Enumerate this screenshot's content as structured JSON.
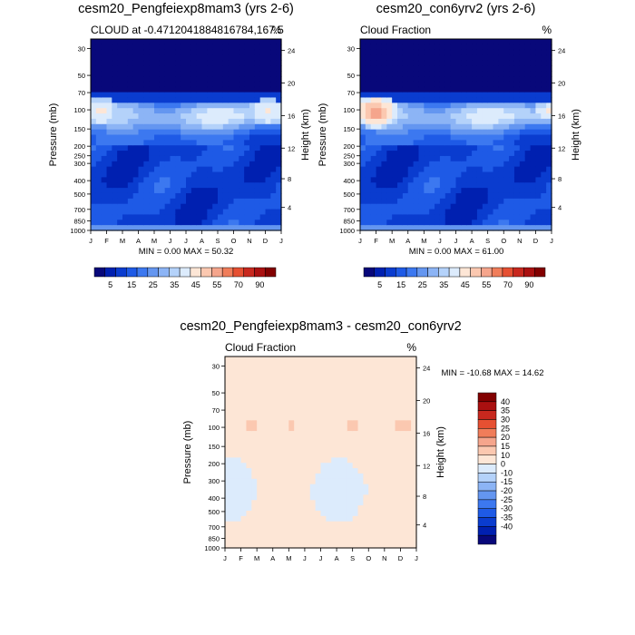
{
  "chart_data": [
    {
      "type": "heatmap",
      "title": "cesm20_Pengfeiexp8mam3 (yrs 2-6)",
      "subtitle_left": "CLOUD at -0.4712041884816784,167.5",
      "subtitle_right": "%",
      "ylabel": "Pressure (mb)",
      "ylabel_right": "Height (km)",
      "x_ticks": [
        "J",
        "F",
        "M",
        "A",
        "M",
        "J",
        "J",
        "A",
        "S",
        "O",
        "N",
        "D",
        "J"
      ],
      "y_ticks": [
        "30",
        "50",
        "70",
        "100",
        "150",
        "200",
        "250",
        "300",
        "400",
        "500",
        "700",
        "850",
        "1000"
      ],
      "y_ticks_right": [
        "24",
        "20",
        "16",
        "12",
        "8",
        "4"
      ],
      "stats": "MIN =   0.00 MAX =  50.32",
      "colorbar_labels": [
        "5",
        "15",
        "25",
        "35",
        "45",
        "55",
        "70",
        "90"
      ]
    },
    {
      "type": "heatmap",
      "title": "cesm20_con6yrv2 (yrs 2-6)",
      "subtitle_left": "Cloud Fraction",
      "subtitle_right": "%",
      "ylabel": "Pressure (mb)",
      "ylabel_right": "Height (km)",
      "x_ticks": [
        "J",
        "F",
        "M",
        "A",
        "M",
        "J",
        "J",
        "A",
        "S",
        "O",
        "N",
        "D",
        "J"
      ],
      "y_ticks": [
        "30",
        "50",
        "70",
        "100",
        "150",
        "200",
        "250",
        "300",
        "400",
        "500",
        "700",
        "850",
        "1000"
      ],
      "y_ticks_right": [
        "24",
        "20",
        "16",
        "12",
        "8",
        "4"
      ],
      "stats": "MIN =   0.00 MAX =  61.00",
      "colorbar_labels": [
        "5",
        "15",
        "25",
        "35",
        "45",
        "55",
        "70",
        "90"
      ]
    },
    {
      "type": "heatmap",
      "title": "cesm20_Pengfeiexp8mam3 - cesm20_con6yrv2",
      "subtitle_left": "Cloud Fraction",
      "subtitle_right": "%",
      "ylabel": "Pressure (mb)",
      "ylabel_right": "Height (km)",
      "x_ticks": [
        "J",
        "F",
        "M",
        "A",
        "M",
        "J",
        "J",
        "A",
        "S",
        "O",
        "N",
        "D",
        "J"
      ],
      "y_ticks": [
        "30",
        "50",
        "70",
        "100",
        "150",
        "200",
        "300",
        "400",
        "500",
        "700",
        "850",
        "1000"
      ],
      "y_ticks_right": [
        "24",
        "20",
        "16",
        "12",
        "8",
        "4"
      ],
      "stats": "MIN = -10.68 MAX =  14.62",
      "colorbar_labels": [
        "40",
        "35",
        "30",
        "25",
        "20",
        "15",
        "10",
        "0",
        "-10",
        "-15",
        "-20",
        "-25",
        "-30",
        "-35",
        "-40"
      ]
    }
  ],
  "colors": {
    "seq": [
      "#08087a",
      "#0020b0",
      "#0a3ccf",
      "#1e5ae6",
      "#3c78f0",
      "#6496f0",
      "#8cb4f5",
      "#b4d2fa",
      "#dcebfc",
      "#fde6d6",
      "#fbc8b0",
      "#f5a58c",
      "#f07d5a",
      "#e65032",
      "#c8281e",
      "#aa1010",
      "#820000"
    ],
    "diff": [
      "#820000",
      "#aa1010",
      "#c8281e",
      "#e65032",
      "#f07d5a",
      "#f5a58c",
      "#fbc8b0",
      "#fde6d6",
      "#dcebfc",
      "#b4d2fa",
      "#8cb4f5",
      "#6496f0",
      "#3c78f0",
      "#1e5ae6",
      "#0a3ccf",
      "#0020b0",
      "#08087a"
    ]
  }
}
